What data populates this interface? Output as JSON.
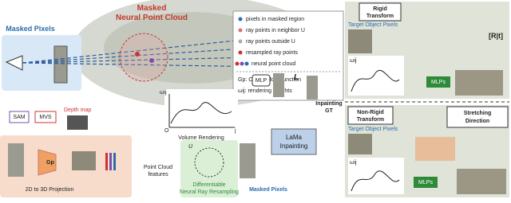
{
  "masked_pixels_top": "Masked Pixels",
  "point_cloud_title": [
    "Masked",
    "Neural Point Cloud"
  ],
  "legend": [
    "pixels in masked region",
    "ray points in neighbor U",
    "ray points outside U",
    "resampled ray points",
    "neural point cloud",
    "Gp: CNN, L: loss function",
    "ωij: rendering weights"
  ],
  "rigid": {
    "title": [
      "Rigid",
      "Transform"
    ],
    "target": "Target Object Pixels",
    "transform": "[R|t]",
    "weight": "ωij",
    "mlp": "MLPs"
  },
  "nonrigid": {
    "title": [
      "Non-Rigid",
      "Transform"
    ],
    "target": "Target Object Pixels",
    "direction": [
      "Stretching",
      "Direction"
    ],
    "weight": "ωij",
    "mlp": "MLPs"
  },
  "pipeline": {
    "sam": "SAM",
    "mvs": "MVS",
    "depth": "Depth map",
    "gp": "Gp",
    "projection": "2D to 3D Projection",
    "features": [
      "Point Cloud",
      "features"
    ],
    "u": "U",
    "resampling": [
      "Differentiable",
      "Neural Ray Resampling"
    ],
    "omega": "ωij",
    "origin": "O",
    "j": "j",
    "volume": "Volume Rendering",
    "mlp": "MLP",
    "loss": "L",
    "lama": [
      "LaMa",
      "Inpainting"
    ],
    "gt": [
      "Inpainting",
      "GT"
    ],
    "masked_pixels": "Masked Pixels"
  }
}
